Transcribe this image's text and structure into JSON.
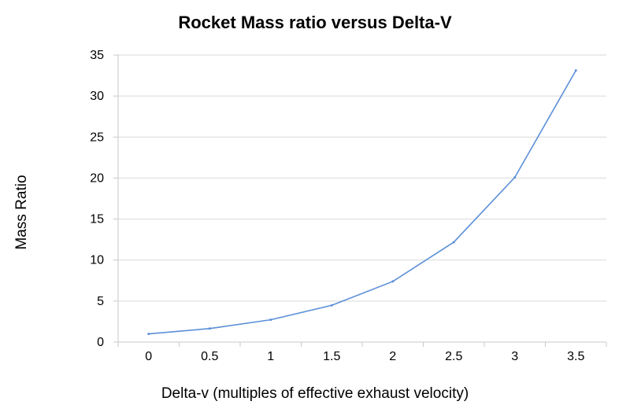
{
  "chart_data": {
    "type": "line",
    "title": "Rocket Mass ratio versus Delta-V",
    "xlabel": "Delta-v (multiples of effective exhaust velocity)",
    "ylabel": "Mass Ratio",
    "x": [
      0,
      0.5,
      1,
      1.5,
      2,
      2.5,
      3,
      3.5
    ],
    "x_tick_labels": [
      "0",
      "0.5",
      "1",
      "1.5",
      "2",
      "2.5",
      "3",
      "3.5"
    ],
    "series": [
      {
        "values": [
          1.0,
          1.65,
          2.72,
          4.48,
          7.39,
          12.18,
          20.09,
          33.12
        ]
      }
    ],
    "ylim": [
      0,
      35
    ],
    "y_ticks": [
      0,
      5,
      10,
      15,
      20,
      25,
      30,
      35
    ],
    "grid": "horizontal",
    "legend": "none",
    "line_color": "#5b8fd8",
    "grid_color": "#d9d9d9",
    "axis_color": "#c8c8c8"
  }
}
